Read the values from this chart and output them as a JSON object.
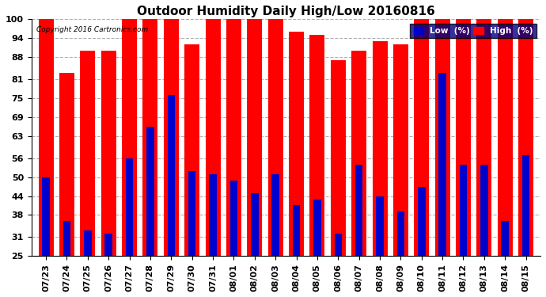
{
  "title": "Outdoor Humidity Daily High/Low 20160816",
  "copyright": "Copyright 2016 Cartronics.com",
  "ylim": [
    25,
    100
  ],
  "yticks": [
    25,
    31,
    38,
    44,
    50,
    56,
    63,
    69,
    75,
    81,
    88,
    94,
    100
  ],
  "categories": [
    "07/23",
    "07/24",
    "07/25",
    "07/26",
    "07/27",
    "07/28",
    "07/29",
    "07/30",
    "07/31",
    "08/01",
    "08/02",
    "08/03",
    "08/04",
    "08/05",
    "08/06",
    "08/07",
    "08/08",
    "08/09",
    "08/10",
    "08/11",
    "08/12",
    "08/13",
    "08/14",
    "08/15"
  ],
  "high_values": [
    100,
    83,
    90,
    90,
    100,
    100,
    100,
    92,
    100,
    100,
    100,
    100,
    96,
    95,
    87,
    90,
    93,
    92,
    100,
    100,
    100,
    100,
    100,
    100
  ],
  "low_values": [
    50,
    36,
    33,
    32,
    56,
    66,
    76,
    52,
    51,
    49,
    45,
    51,
    41,
    43,
    32,
    54,
    44,
    39,
    47,
    83,
    54,
    54,
    36,
    57
  ],
  "high_color": "#ff0000",
  "low_color": "#0000cc",
  "background_color": "#ffffff",
  "grid_color": "#b0b0b0",
  "title_fontsize": 11,
  "tick_fontsize": 8,
  "bar_width": 0.72,
  "low_bar_width": 0.36,
  "ymin": 25
}
